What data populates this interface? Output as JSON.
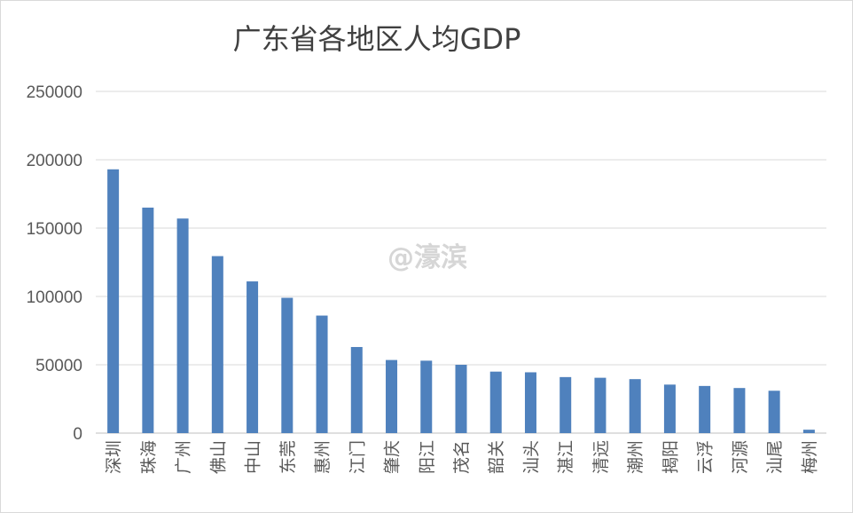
{
  "colors": {
    "bar": "#4f81bd",
    "grid": "#d9d9d9",
    "text": "#595959"
  },
  "watermark": "@濠滨",
  "chart_data": {
    "type": "bar",
    "title": "广东省各地区人均GDP",
    "xlabel": "",
    "ylabel": "",
    "ylim": [
      0,
      250000
    ],
    "yticks": [
      0,
      50000,
      100000,
      150000,
      200000,
      250000
    ],
    "ytick_labels": [
      "0",
      "50000",
      "100000",
      "150000",
      "200000",
      "250000"
    ],
    "grid": true,
    "legend": "none",
    "categories": [
      "深圳",
      "珠海",
      "广州",
      "佛山",
      "中山",
      "东莞",
      "惠州",
      "江门",
      "肇庆",
      "阳江",
      "茂名",
      "韶关",
      "汕头",
      "湛江",
      "清远",
      "潮州",
      "揭阳",
      "云浮",
      "河源",
      "汕尾",
      "梅州"
    ],
    "values": [
      193000,
      165000,
      157000,
      129500,
      111000,
      99000,
      86000,
      63000,
      53500,
      53000,
      50000,
      45000,
      44500,
      41000,
      40500,
      39500,
      35500,
      34500,
      33000,
      31000,
      2500
    ]
  }
}
